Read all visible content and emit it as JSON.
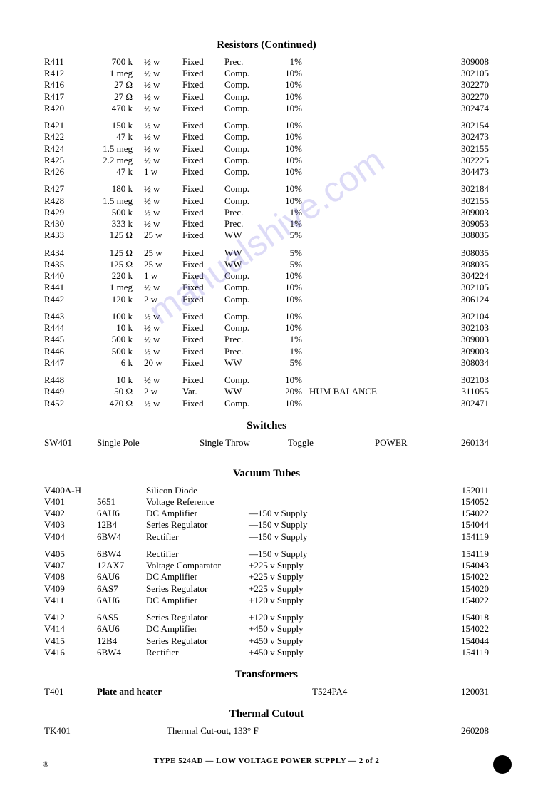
{
  "watermark_text": "manualshive.com",
  "headings": {
    "resistors": "Resistors (Continued)",
    "switches": "Switches",
    "vacuum_tubes": "Vacuum Tubes",
    "transformers": "Transformers",
    "thermal_cutout": "Thermal Cutout"
  },
  "resistors": {
    "groups": [
      [
        {
          "ref": "R411",
          "val": "700 k",
          "watt": "½ w",
          "fixed": "Fixed",
          "type": "Prec.",
          "tol": "1%",
          "note": "",
          "part": "309008"
        },
        {
          "ref": "R412",
          "val": "1 meg",
          "watt": "½ w",
          "fixed": "Fixed",
          "type": "Comp.",
          "tol": "10%",
          "note": "",
          "part": "302105"
        },
        {
          "ref": "R416",
          "val": "27 Ω",
          "watt": "½ w",
          "fixed": "Fixed",
          "type": "Comp.",
          "tol": "10%",
          "note": "",
          "part": "302270"
        },
        {
          "ref": "R417",
          "val": "27 Ω",
          "watt": "½ w",
          "fixed": "Fixed",
          "type": "Comp.",
          "tol": "10%",
          "note": "",
          "part": "302270"
        },
        {
          "ref": "R420",
          "val": "470 k",
          "watt": "½ w",
          "fixed": "Fixed",
          "type": "Comp.",
          "tol": "10%",
          "note": "",
          "part": "302474"
        }
      ],
      [
        {
          "ref": "R421",
          "val": "150 k",
          "watt": "½ w",
          "fixed": "Fixed",
          "type": "Comp.",
          "tol": "10%",
          "note": "",
          "part": "302154"
        },
        {
          "ref": "R422",
          "val": "47 k",
          "watt": "½ w",
          "fixed": "Fixed",
          "type": "Comp.",
          "tol": "10%",
          "note": "",
          "part": "302473"
        },
        {
          "ref": "R424",
          "val": "1.5 meg",
          "watt": "½ w",
          "fixed": "Fixed",
          "type": "Comp.",
          "tol": "10%",
          "note": "",
          "part": "302155"
        },
        {
          "ref": "R425",
          "val": "2.2 meg",
          "watt": "½ w",
          "fixed": "Fixed",
          "type": "Comp.",
          "tol": "10%",
          "note": "",
          "part": "302225"
        },
        {
          "ref": "R426",
          "val": "47 k",
          "watt": "1 w",
          "fixed": "Fixed",
          "type": "Comp.",
          "tol": "10%",
          "note": "",
          "part": "304473"
        }
      ],
      [
        {
          "ref": "R427",
          "val": "180 k",
          "watt": "½ w",
          "fixed": "Fixed",
          "type": "Comp.",
          "tol": "10%",
          "note": "",
          "part": "302184"
        },
        {
          "ref": "R428",
          "val": "1.5 meg",
          "watt": "½ w",
          "fixed": "Fixed",
          "type": "Comp.",
          "tol": "10%",
          "note": "",
          "part": "302155"
        },
        {
          "ref": "R429",
          "val": "500 k",
          "watt": "½ w",
          "fixed": "Fixed",
          "type": "Prec.",
          "tol": "1%",
          "note": "",
          "part": "309003"
        },
        {
          "ref": "R430",
          "val": "333 k",
          "watt": "½ w",
          "fixed": "Fixed",
          "type": "Prec.",
          "tol": "1%",
          "note": "",
          "part": "309053"
        },
        {
          "ref": "R433",
          "val": "125 Ω",
          "watt": "25 w",
          "fixed": "Fixed",
          "type": "WW",
          "tol": "5%",
          "note": "",
          "part": "308035"
        }
      ],
      [
        {
          "ref": "R434",
          "val": "125 Ω",
          "watt": "25 w",
          "fixed": "Fixed",
          "type": "WW",
          "tol": "5%",
          "note": "",
          "part": "308035"
        },
        {
          "ref": "R435",
          "val": "125 Ω",
          "watt": "25 w",
          "fixed": "Fixed",
          "type": "WW",
          "tol": "5%",
          "note": "",
          "part": "308035"
        },
        {
          "ref": "R440",
          "val": "220 k",
          "watt": "1 w",
          "fixed": "Fixed",
          "type": "Comp.",
          "tol": "10%",
          "note": "",
          "part": "304224"
        },
        {
          "ref": "R441",
          "val": "1 meg",
          "watt": "½ w",
          "fixed": "Fixed",
          "type": "Comp.",
          "tol": "10%",
          "note": "",
          "part": "302105"
        },
        {
          "ref": "R442",
          "val": "120 k",
          "watt": "2 w",
          "fixed": "Fixed",
          "type": "Comp.",
          "tol": "10%",
          "note": "",
          "part": "306124"
        }
      ],
      [
        {
          "ref": "R443",
          "val": "100 k",
          "watt": "½ w",
          "fixed": "Fixed",
          "type": "Comp.",
          "tol": "10%",
          "note": "",
          "part": "302104"
        },
        {
          "ref": "R444",
          "val": "10 k",
          "watt": "½ w",
          "fixed": "Fixed",
          "type": "Comp.",
          "tol": "10%",
          "note": "",
          "part": "302103"
        },
        {
          "ref": "R445",
          "val": "500 k",
          "watt": "½ w",
          "fixed": "Fixed",
          "type": "Prec.",
          "tol": "1%",
          "note": "",
          "part": "309003"
        },
        {
          "ref": "R446",
          "val": "500 k",
          "watt": "½ w",
          "fixed": "Fixed",
          "type": "Prec.",
          "tol": "1%",
          "note": "",
          "part": "309003"
        },
        {
          "ref": "R447",
          "val": "6 k",
          "watt": "20 w",
          "fixed": "Fixed",
          "type": "WW",
          "tol": "5%",
          "note": "",
          "part": "308034"
        }
      ],
      [
        {
          "ref": "R448",
          "val": "10 k",
          "watt": "½ w",
          "fixed": "Fixed",
          "type": "Comp.",
          "tol": "10%",
          "note": "",
          "part": "302103"
        },
        {
          "ref": "R449",
          "val": "50 Ω",
          "watt": "2 w",
          "fixed": "Var.",
          "type": "WW",
          "tol": "20%",
          "note": "HUM BALANCE",
          "part": "311055"
        },
        {
          "ref": "R452",
          "val": "470 Ω",
          "watt": "½ w",
          "fixed": "Fixed",
          "type": "Comp.",
          "tol": "10%",
          "note": "",
          "part": "302471"
        }
      ]
    ]
  },
  "switches": {
    "rows": [
      {
        "ref": "SW401",
        "c2": "Single Pole",
        "c3": "Single Throw",
        "c4": "Toggle",
        "c5": "POWER",
        "part": "260134"
      }
    ]
  },
  "vacuum_tubes": {
    "groups": [
      [
        {
          "ref": "V400A-H",
          "type": "",
          "desc": "Silicon Diode",
          "supply": "",
          "part": "152011"
        },
        {
          "ref": "V401",
          "type": "5651",
          "desc": "Voltage Reference",
          "supply": "",
          "part": "154052"
        },
        {
          "ref": "V402",
          "type": "6AU6",
          "desc": "DC Amplifier",
          "supply": "—150 v Supply",
          "part": "154022"
        },
        {
          "ref": "V403",
          "type": "12B4",
          "desc": "Series Regulator",
          "supply": "—150 v Supply",
          "part": "154044"
        },
        {
          "ref": "V404",
          "type": "6BW4",
          "desc": "Rectifier",
          "supply": "—150 v Supply",
          "part": "154119"
        }
      ],
      [
        {
          "ref": "V405",
          "type": "6BW4",
          "desc": "Rectifier",
          "supply": "—150 v Supply",
          "part": "154119"
        },
        {
          "ref": "V407",
          "type": "12AX7",
          "desc": "Voltage Comparator",
          "supply": "+225 v Supply",
          "part": "154043"
        },
        {
          "ref": "V408",
          "type": "6AU6",
          "desc": "DC Amplifier",
          "supply": "+225 v Supply",
          "part": "154022"
        },
        {
          "ref": "V409",
          "type": "6AS7",
          "desc": "Series Regulator",
          "supply": "+225 v Supply",
          "part": "154020"
        },
        {
          "ref": "V411",
          "type": "6AU6",
          "desc": "DC Amplifier",
          "supply": "+120 v Supply",
          "part": "154022"
        }
      ],
      [
        {
          "ref": "V412",
          "type": "6AS5",
          "desc": "Series Regulator",
          "supply": "+120 v Supply",
          "part": "154018"
        },
        {
          "ref": "V414",
          "type": "6AU6",
          "desc": "DC Amplifier",
          "supply": "+450 v Supply",
          "part": "154022"
        },
        {
          "ref": "V415",
          "type": "12B4",
          "desc": "Series Regulator",
          "supply": "+450 v Supply",
          "part": "154044"
        },
        {
          "ref": "V416",
          "type": "6BW4",
          "desc": "Rectifier",
          "supply": "+450 v Supply",
          "part": "154119"
        }
      ]
    ]
  },
  "transformers": {
    "rows": [
      {
        "ref": "T401",
        "desc": "Plate and heater",
        "model": "T524PA4",
        "part": "120031"
      }
    ]
  },
  "thermal_cutout": {
    "rows": [
      {
        "ref": "TK401",
        "desc": "Thermal Cut-out, 133° F",
        "part": "260208"
      }
    ]
  },
  "footer": "TYPE 524AD — LOW VOLTAGE POWER SUPPLY — 2 of 2",
  "reg_mark": "®"
}
